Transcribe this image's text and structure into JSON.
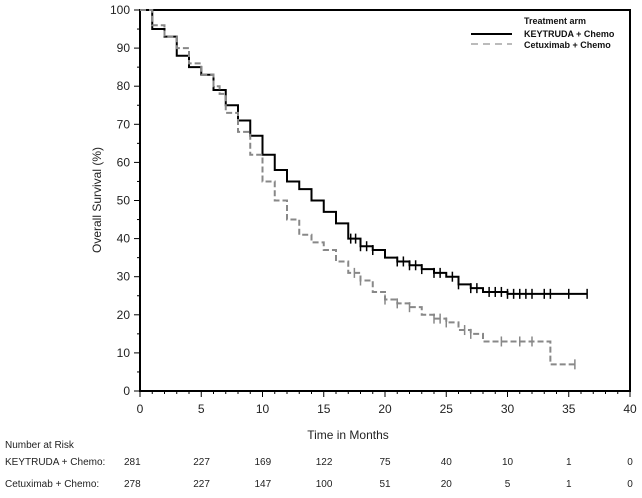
{
  "chart_data": {
    "type": "line",
    "title": "",
    "xlabel": "Time in Months",
    "ylabel": "Overall Survival (%)",
    "xlim": [
      0,
      40
    ],
    "ylim": [
      0,
      100
    ],
    "x_ticks": [
      "0",
      "5",
      "10",
      "15",
      "20",
      "25",
      "30",
      "35",
      "40"
    ],
    "y_ticks": [
      "0",
      "10",
      "20",
      "30",
      "40",
      "50",
      "60",
      "70",
      "80",
      "90",
      "100"
    ],
    "x_tick_values": [
      0,
      5,
      10,
      15,
      20,
      25,
      30,
      35,
      40
    ],
    "y_tick_values": [
      0,
      10,
      20,
      30,
      40,
      50,
      60,
      70,
      80,
      90,
      100
    ],
    "legend": {
      "title": "Treatment arm",
      "placement": "top-right"
    },
    "series": [
      {
        "name": "KEYTRUDA + Chemo",
        "color": "#000000",
        "style": "solid",
        "x": [
          0,
          1,
          2,
          3,
          4,
          5,
          6,
          7,
          8,
          9,
          10,
          11,
          12,
          13,
          14,
          15,
          16,
          17,
          18,
          19,
          20,
          21,
          22,
          23,
          24,
          25,
          26,
          27,
          28,
          29,
          30,
          36.5
        ],
        "y": [
          100,
          95,
          93,
          88,
          85,
          83,
          79,
          75,
          71,
          67,
          62,
          58,
          55,
          53,
          50,
          47,
          44,
          40,
          38,
          37,
          35,
          34,
          33,
          32,
          31,
          30,
          28,
          27,
          26,
          26,
          25.5,
          25.5
        ],
        "censor_x": [
          17.2,
          17.6,
          18,
          18.5,
          19,
          21,
          21.5,
          22,
          22.5,
          23,
          24,
          24.5,
          25.5,
          26,
          27,
          27.5,
          28.5,
          29,
          29.5,
          30,
          30.5,
          31,
          31.5,
          32,
          33,
          33.5,
          35,
          36.5
        ]
      },
      {
        "name": "Cetuximab + Chemo",
        "color": "#888888",
        "style": "dashed",
        "x": [
          0,
          1,
          2,
          3,
          4,
          5,
          6,
          6.5,
          7,
          8,
          9,
          10,
          11,
          12,
          13,
          14,
          15,
          16,
          17,
          18,
          19,
          20,
          21,
          22,
          23,
          24,
          25,
          26,
          27,
          28,
          33.5,
          33.5,
          35.5
        ],
        "y": [
          100,
          96,
          93,
          90,
          86,
          83,
          80,
          78,
          73,
          68,
          62,
          55,
          50,
          45,
          41,
          39,
          37,
          34,
          31,
          29,
          26,
          24,
          23,
          22,
          20,
          19,
          18,
          16,
          15,
          13,
          13,
          7,
          7
        ],
        "censor_x": [
          17.5,
          18,
          20,
          21,
          22,
          24,
          24.5,
          25,
          26.5,
          27,
          29.5,
          31,
          32,
          35.5
        ]
      }
    ]
  },
  "risk_table": {
    "heading": "Number at Risk",
    "rows": [
      {
        "label": "KEYTRUDA + Chemo:",
        "values": [
          "281",
          "227",
          "169",
          "122",
          "75",
          "40",
          "10",
          "1",
          "0"
        ]
      },
      {
        "label": "Cetuximab + Chemo:",
        "values": [
          "278",
          "227",
          "147",
          "100",
          "51",
          "20",
          "5",
          "1",
          "0"
        ]
      }
    ]
  }
}
